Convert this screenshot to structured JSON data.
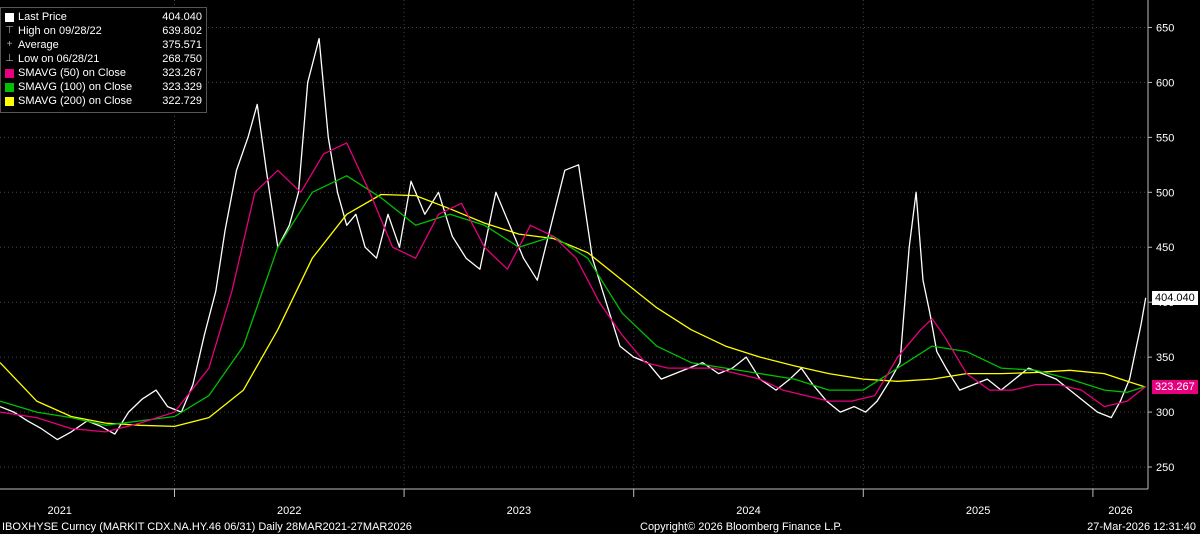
{
  "legend": {
    "items": [
      {
        "label": "Last Price",
        "value": "404.040",
        "swatch": "#ffffff",
        "glyph": ""
      },
      {
        "label": "High on 09/28/22",
        "value": "639.802",
        "swatch": "",
        "glyph": "⊤"
      },
      {
        "label": "Average",
        "value": "375.571",
        "swatch": "",
        "glyph": "+"
      },
      {
        "label": "Low on 06/28/21",
        "value": "268.750",
        "swatch": "",
        "glyph": "⊥"
      },
      {
        "label": "SMAVG (50)  on Close",
        "value": "323.267",
        "swatch": "#e6007e",
        "glyph": ""
      },
      {
        "label": "SMAVG (100)  on Close",
        "value": "323.329",
        "swatch": "#00c000",
        "glyph": ""
      },
      {
        "label": "SMAVG (200)  on Close",
        "value": "322.729",
        "swatch": "#ffff00",
        "glyph": ""
      }
    ]
  },
  "price_tags": [
    {
      "value": "404.040",
      "y": 404.04,
      "bg": "#ffffff",
      "fg": "#000000"
    },
    {
      "value": "323.267",
      "y": 323.267,
      "bg": "#e6007e",
      "fg": "#ffffff"
    }
  ],
  "footer": {
    "left": "IBOXHYSE Curncy (MARKIT CDX.NA.HY.46 06/31) Daily 28MAR2021-27MAR2026",
    "center": "Copyright© 2026 Bloomberg Finance L.P.",
    "right": "27-Mar-2026 12:31:40"
  },
  "chart_data": {
    "type": "line",
    "ylim": [
      230,
      675
    ],
    "yticks": [
      250,
      300,
      350,
      400,
      450,
      500,
      550,
      600,
      650
    ],
    "xlim": [
      2021.24,
      2026.24
    ],
    "xticks": [
      {
        "label": "2021",
        "at": 2021.5
      },
      {
        "label": "2022",
        "at": 2022.5
      },
      {
        "label": "2023",
        "at": 2023.5
      },
      {
        "label": "2024",
        "at": 2024.5
      },
      {
        "label": "2025",
        "at": 2025.5
      },
      {
        "label": "2026",
        "at": 2026.12
      }
    ],
    "year_boundaries": [
      2022.0,
      2023.0,
      2024.0,
      2025.0,
      2026.0
    ],
    "series": [
      {
        "key": "price",
        "color": "#ffffff",
        "width": 1.3,
        "x": [
          2021.24,
          2021.3,
          2021.36,
          2021.42,
          2021.49,
          2021.55,
          2021.62,
          2021.68,
          2021.74,
          2021.8,
          2021.86,
          2021.92,
          2021.97,
          2022.03,
          2022.08,
          2022.13,
          2022.18,
          2022.22,
          2022.27,
          2022.32,
          2022.36,
          2022.4,
          2022.45,
          2022.5,
          2022.54,
          2022.58,
          2022.63,
          2022.67,
          2022.71,
          2022.75,
          2022.79,
          2022.83,
          2022.88,
          2022.93,
          2022.98,
          2023.03,
          2023.09,
          2023.15,
          2023.21,
          2023.27,
          2023.33,
          2023.4,
          2023.46,
          2023.52,
          2023.58,
          2023.64,
          2023.7,
          2023.76,
          2023.82,
          2023.88,
          2023.94,
          2024.0,
          2024.06,
          2024.12,
          2024.18,
          2024.24,
          2024.3,
          2024.37,
          2024.43,
          2024.49,
          2024.55,
          2024.62,
          2024.68,
          2024.73,
          2024.78,
          2024.84,
          2024.9,
          2024.96,
          2025.01,
          2025.06,
          2025.12,
          2025.16,
          2025.2,
          2025.23,
          2025.26,
          2025.29,
          2025.32,
          2025.36,
          2025.42,
          2025.48,
          2025.54,
          2025.6,
          2025.66,
          2025.72,
          2025.78,
          2025.84,
          2025.9,
          2025.96,
          2026.02,
          2026.08,
          2026.12,
          2026.16,
          2026.19,
          2026.21,
          2026.23
        ],
        "y": [
          305,
          300,
          292,
          285,
          275,
          282,
          292,
          287,
          280,
          300,
          312,
          320,
          305,
          300,
          325,
          370,
          410,
          465,
          520,
          550,
          580,
          520,
          450,
          470,
          500,
          600,
          640,
          550,
          500,
          470,
          480,
          450,
          440,
          480,
          450,
          510,
          480,
          500,
          460,
          440,
          430,
          500,
          470,
          440,
          420,
          470,
          520,
          525,
          440,
          400,
          360,
          350,
          345,
          330,
          335,
          340,
          345,
          335,
          340,
          350,
          330,
          320,
          330,
          340,
          325,
          310,
          300,
          305,
          300,
          310,
          330,
          345,
          450,
          500,
          420,
          390,
          355,
          340,
          320,
          325,
          330,
          320,
          330,
          340,
          335,
          330,
          320,
          310,
          300,
          295,
          310,
          330,
          360,
          380,
          404.04
        ]
      },
      {
        "key": "sma50",
        "color": "#e6007e",
        "width": 1.3,
        "x": [
          2021.24,
          2021.4,
          2021.55,
          2021.7,
          2021.85,
          2022.0,
          2022.15,
          2022.25,
          2022.35,
          2022.45,
          2022.55,
          2022.65,
          2022.75,
          2022.85,
          2022.95,
          2023.05,
          2023.15,
          2023.25,
          2023.35,
          2023.45,
          2023.55,
          2023.65,
          2023.75,
          2023.85,
          2023.95,
          2024.05,
          2024.15,
          2024.25,
          2024.35,
          2024.45,
          2024.55,
          2024.65,
          2024.75,
          2024.85,
          2024.95,
          2025.05,
          2025.15,
          2025.25,
          2025.3,
          2025.35,
          2025.45,
          2025.55,
          2025.65,
          2025.75,
          2025.85,
          2025.95,
          2026.05,
          2026.15,
          2026.23
        ],
        "y": [
          300,
          295,
          285,
          282,
          290,
          300,
          340,
          410,
          500,
          520,
          500,
          535,
          545,
          500,
          450,
          440,
          480,
          490,
          450,
          430,
          470,
          460,
          440,
          400,
          370,
          345,
          340,
          340,
          340,
          335,
          330,
          320,
          315,
          310,
          310,
          315,
          350,
          375,
          385,
          370,
          335,
          320,
          320,
          325,
          325,
          320,
          305,
          310,
          323.267
        ]
      },
      {
        "key": "sma100",
        "color": "#00c000",
        "width": 1.3,
        "x": [
          2021.24,
          2021.4,
          2021.55,
          2021.7,
          2021.85,
          2022.0,
          2022.15,
          2022.3,
          2022.45,
          2022.6,
          2022.75,
          2022.9,
          2023.05,
          2023.2,
          2023.35,
          2023.5,
          2023.65,
          2023.8,
          2023.95,
          2024.1,
          2024.25,
          2024.4,
          2024.55,
          2024.7,
          2024.85,
          2025.0,
          2025.15,
          2025.3,
          2025.45,
          2025.6,
          2025.75,
          2025.9,
          2026.05,
          2026.15,
          2026.23
        ],
        "y": [
          310,
          300,
          295,
          288,
          292,
          296,
          315,
          360,
          450,
          500,
          515,
          495,
          470,
          480,
          470,
          450,
          460,
          440,
          390,
          360,
          345,
          340,
          335,
          330,
          320,
          320,
          340,
          360,
          355,
          340,
          338,
          330,
          320,
          318,
          323.329
        ]
      },
      {
        "key": "sma200",
        "color": "#ffff00",
        "width": 1.3,
        "x": [
          2021.24,
          2021.4,
          2021.55,
          2021.7,
          2021.85,
          2022.0,
          2022.15,
          2022.3,
          2022.45,
          2022.6,
          2022.75,
          2022.9,
          2023.05,
          2023.2,
          2023.35,
          2023.5,
          2023.65,
          2023.8,
          2023.95,
          2024.1,
          2024.25,
          2024.4,
          2024.55,
          2024.7,
          2024.85,
          2025.0,
          2025.15,
          2025.3,
          2025.45,
          2025.6,
          2025.75,
          2025.9,
          2026.05,
          2026.15,
          2026.23
        ],
        "y": [
          345,
          310,
          296,
          290,
          288,
          287,
          295,
          320,
          375,
          440,
          480,
          498,
          497,
          485,
          472,
          462,
          458,
          445,
          420,
          395,
          375,
          360,
          350,
          342,
          335,
          330,
          328,
          330,
          335,
          335,
          336,
          338,
          335,
          328,
          322.729
        ]
      }
    ]
  }
}
